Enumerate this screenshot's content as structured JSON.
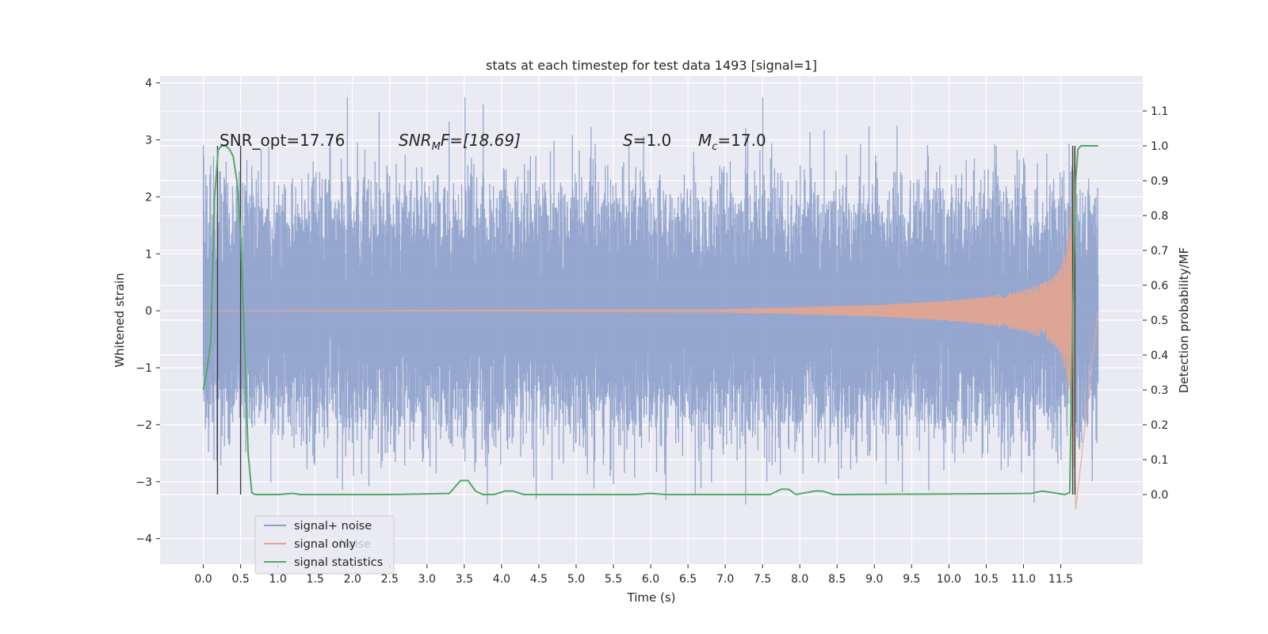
{
  "chart_data": {
    "type": "line",
    "title": "stats at each timestep for test data 1493 [signal=1]",
    "xlabel": "Time (s)",
    "ylabel_left": "Whitened strain",
    "ylabel_right": "Detection probability/MF",
    "x_ticks": [
      "0.0",
      "0.5",
      "1.0",
      "1.5",
      "2.0",
      "2.5",
      "3.0",
      "3.5",
      "4.0",
      "4.5",
      "5.0",
      "5.5",
      "6.0",
      "6.5",
      "7.0",
      "7.5",
      "8.0",
      "8.5",
      "9.0",
      "9.5",
      "10.0",
      "10.5",
      "11.0",
      "11.5"
    ],
    "y_left_ticks": [
      "−4",
      "−3",
      "−2",
      "−1",
      "0",
      "1",
      "2",
      "3",
      "4"
    ],
    "y_right_ticks": [
      "0.0",
      "0.1",
      "0.2",
      "0.3",
      "0.4",
      "0.5",
      "0.6",
      "0.7",
      "0.8",
      "0.9",
      "1.0",
      "1.1"
    ],
    "xlim": [
      -0.58,
      12.6
    ],
    "ylim_left": [
      -4.45,
      4.12
    ],
    "ylim_right": [
      -0.2,
      1.2
    ],
    "grid": true,
    "legend_position": "lower-left",
    "annotations": {
      "snr_opt": "SNR_opt=17.76",
      "snr_mf_base": "SNR",
      "snr_mf_sub": "M",
      "snr_mf_rest": "F=[18.69]",
      "s_italic": "S",
      "s_rest": "=1.0",
      "mc_italic": "M",
      "mc_sub": "c",
      "mc_rest": "=17.0"
    },
    "series": [
      {
        "name": "signal+ noise",
        "color": "#8da0cb",
        "axis": "left",
        "description_x_range": [
          0.0,
          12.0
        ],
        "approx_envelope": [
          -3.4,
          3.75
        ]
      },
      {
        "name": "signal only",
        "color": "#e5a58e",
        "axis": "left",
        "envelope_x": [
          0.0,
          7.0,
          8.0,
          9.0,
          10.0,
          10.5,
          11.0,
          11.2,
          11.4,
          11.5,
          11.6,
          11.65,
          11.7
        ],
        "envelope_y": [
          0.0,
          0.02,
          0.06,
          0.1,
          0.18,
          0.25,
          0.36,
          0.45,
          0.6,
          0.78,
          1.3,
          2.0,
          3.5
        ]
      },
      {
        "name": "signal statistics",
        "color": "#55a868",
        "axis": "right",
        "x": [
          0.0,
          0.05,
          0.1,
          0.15,
          0.2,
          0.25,
          0.3,
          0.35,
          0.4,
          0.45,
          0.5,
          0.55,
          0.6,
          0.65,
          0.7,
          0.75,
          1.0,
          1.2,
          1.3,
          1.5,
          2.5,
          3.3,
          3.45,
          3.55,
          3.65,
          3.75,
          3.9,
          4.05,
          4.15,
          4.3,
          5.8,
          6.0,
          6.2,
          7.6,
          7.75,
          7.85,
          7.95,
          8.2,
          8.3,
          8.45,
          8.6,
          11.1,
          11.25,
          11.4,
          11.55,
          11.62,
          11.66,
          11.7,
          11.73,
          11.77,
          11.85,
          12.0
        ],
        "y": [
          0.3,
          0.36,
          0.44,
          0.85,
          0.99,
          1.0,
          1.0,
          0.99,
          0.97,
          0.9,
          0.75,
          0.45,
          0.12,
          0.005,
          0.0,
          0.0,
          0.0,
          0.003,
          0.0,
          0.0,
          0.0,
          0.003,
          0.04,
          0.04,
          0.01,
          0.0,
          0.0,
          0.01,
          0.01,
          0.0,
          0.0,
          0.003,
          0.0,
          0.0,
          0.015,
          0.015,
          0.0,
          0.01,
          0.01,
          0.0,
          0.0,
          0.003,
          0.01,
          0.005,
          0.0,
          0.005,
          0.5,
          0.9,
          0.99,
          1.0,
          1.0,
          1.0
        ]
      }
    ],
    "vertical_markers": [
      {
        "x": 0.19,
        "color": "#404040"
      },
      {
        "x": 0.5,
        "color": "#404040"
      },
      {
        "x": 11.66,
        "color": "#404040"
      },
      {
        "x": 11.69,
        "color": "#404040"
      }
    ],
    "legend": [
      {
        "label": "signal+ noise",
        "color": "#8da0cb"
      },
      {
        "label": "signal only",
        "color": "#e5a58e"
      },
      {
        "label": "signal statistics",
        "color": "#55a868"
      }
    ],
    "legend_ghost_text": "Noise",
    "background": "#eaeaf2",
    "grid_color": "#ffffff"
  }
}
